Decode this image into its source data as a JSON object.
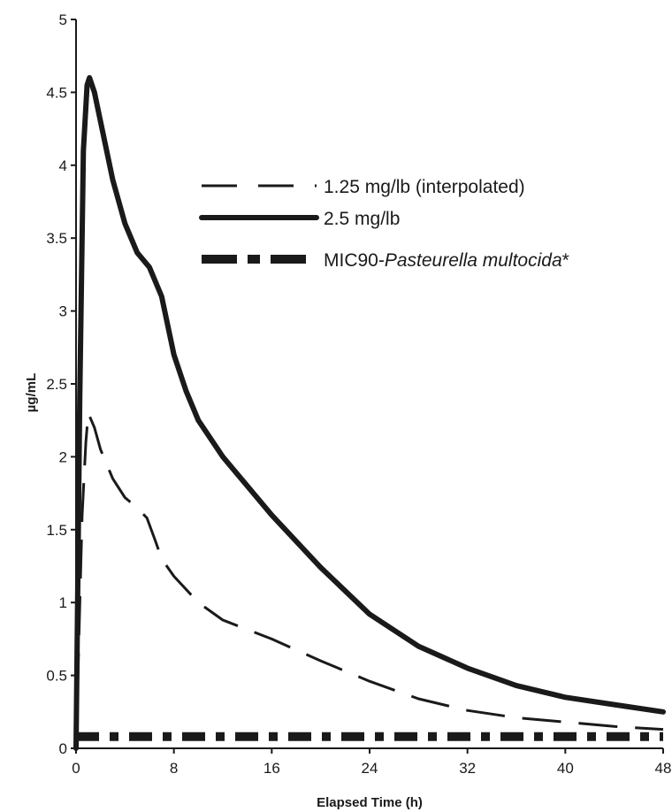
{
  "chart_data": {
    "type": "line",
    "title": "",
    "xlabel": "Elapsed Time (h)",
    "ylabel": "µg/mL",
    "xlim": [
      0,
      48
    ],
    "ylim": [
      0,
      5
    ],
    "x_ticks": [
      0,
      8,
      16,
      24,
      32,
      40,
      48
    ],
    "x_tick_labels": [
      "0",
      "8",
      "16",
      "24",
      "32",
      "40",
      "48"
    ],
    "y_ticks": [
      0,
      0.5,
      1,
      1.5,
      2,
      2.5,
      3,
      3.5,
      4,
      4.5,
      5
    ],
    "y_tick_labels": [
      "0",
      "0.5",
      "1",
      "1.5",
      "2",
      "2.5",
      "3",
      "3.5",
      "4",
      "4.5",
      "5"
    ],
    "grid": false,
    "legend_position": "top-right",
    "series": [
      {
        "name": "1.25 mg/lb (interpolated)",
        "style": "dashed",
        "color": "#1a1a1a",
        "points": [
          [
            0,
            0
          ],
          [
            0.5,
            1.6
          ],
          [
            0.8,
            2.1
          ],
          [
            1,
            2.3
          ],
          [
            1.5,
            2.2
          ],
          [
            2,
            2.05
          ],
          [
            3,
            1.85
          ],
          [
            4,
            1.72
          ],
          [
            5,
            1.65
          ],
          [
            5.8,
            1.58
          ],
          [
            6.5,
            1.42
          ],
          [
            7,
            1.3
          ],
          [
            8,
            1.18
          ],
          [
            10,
            1.0
          ],
          [
            12,
            0.88
          ],
          [
            16,
            0.75
          ],
          [
            20,
            0.6
          ],
          [
            24,
            0.46
          ],
          [
            28,
            0.34
          ],
          [
            32,
            0.26
          ],
          [
            36,
            0.21
          ],
          [
            40,
            0.18
          ],
          [
            44,
            0.15
          ],
          [
            48,
            0.13
          ]
        ]
      },
      {
        "name": "2.5 mg/lb",
        "style": "solid",
        "color": "#1a1a1a",
        "points": [
          [
            0,
            0
          ],
          [
            0.3,
            2.4
          ],
          [
            0.6,
            4.1
          ],
          [
            0.9,
            4.55
          ],
          [
            1.1,
            4.6
          ],
          [
            1.5,
            4.5
          ],
          [
            2,
            4.3
          ],
          [
            3,
            3.9
          ],
          [
            4,
            3.6
          ],
          [
            5,
            3.4
          ],
          [
            6,
            3.3
          ],
          [
            7,
            3.1
          ],
          [
            8,
            2.7
          ],
          [
            9,
            2.45
          ],
          [
            10,
            2.25
          ],
          [
            12,
            2.0
          ],
          [
            16,
            1.6
          ],
          [
            20,
            1.24
          ],
          [
            24,
            0.92
          ],
          [
            28,
            0.7
          ],
          [
            32,
            0.55
          ],
          [
            36,
            0.43
          ],
          [
            40,
            0.35
          ],
          [
            44,
            0.3
          ],
          [
            48,
            0.25
          ]
        ]
      },
      {
        "name": "MIC90-Pasteurella multocida*",
        "style": "dash-dot",
        "color": "#1a1a1a",
        "points": [
          [
            0,
            0.08
          ],
          [
            48,
            0.08
          ]
        ]
      }
    ]
  },
  "legend": {
    "items": [
      {
        "text": "1.25 mg/lb (interpolated)",
        "italic_part": ""
      },
      {
        "text": "2.5 mg/lb",
        "italic_part": ""
      },
      {
        "text": "MIC90-",
        "italic_part": "Pasteurella multocida",
        "suffix": "*"
      }
    ]
  }
}
